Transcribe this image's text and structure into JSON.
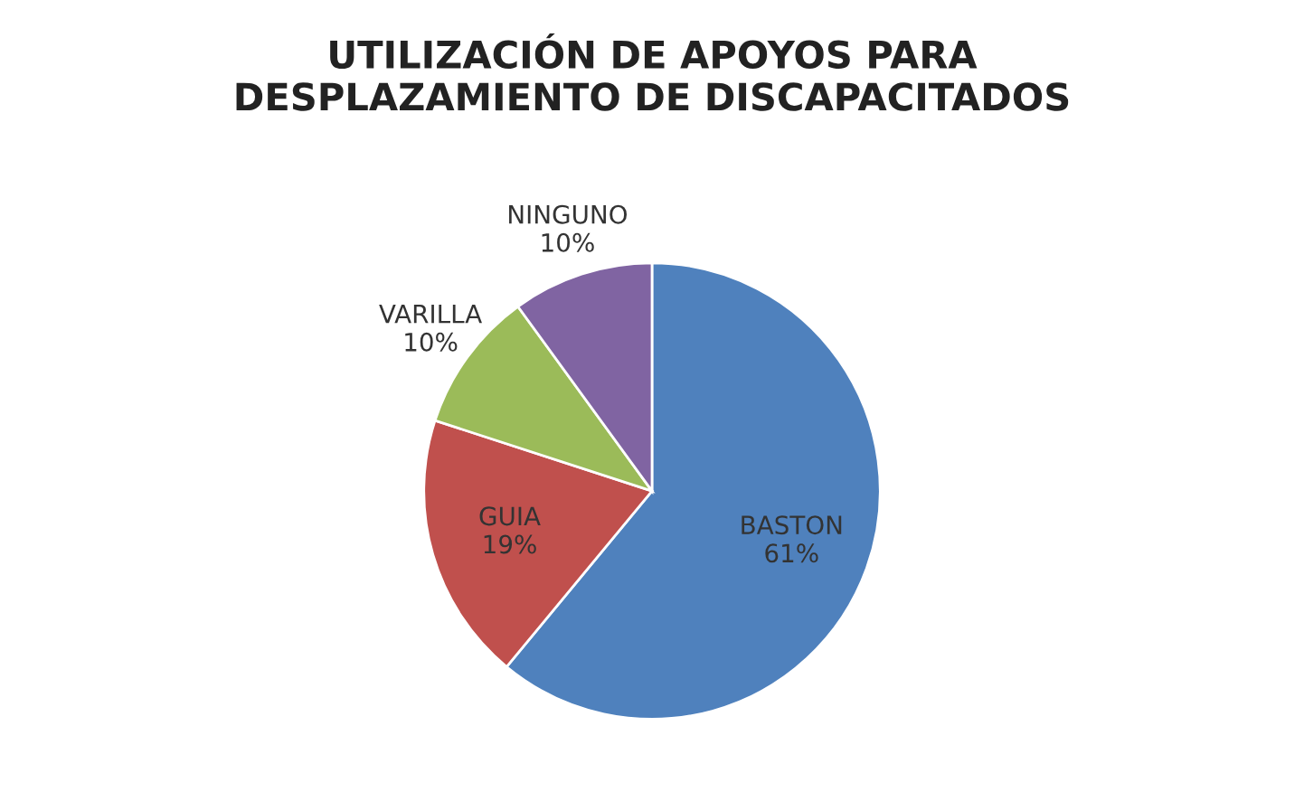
{
  "chart_data": {
    "type": "pie",
    "title": "UTILIZACIÓN DE APOYOS PARA\nDESPLAZAMIENTO DE DISCAPACITADOS",
    "categories": [
      "BASTON",
      "GUIA",
      "VARILLA",
      "NINGUNO"
    ],
    "values": [
      61,
      19,
      10,
      10
    ],
    "value_labels": [
      "61%",
      "19%",
      "10%",
      "10%"
    ],
    "colors": [
      "#4f81bd",
      "#c0504d",
      "#9bbb59",
      "#8064a2"
    ],
    "legend": false
  }
}
